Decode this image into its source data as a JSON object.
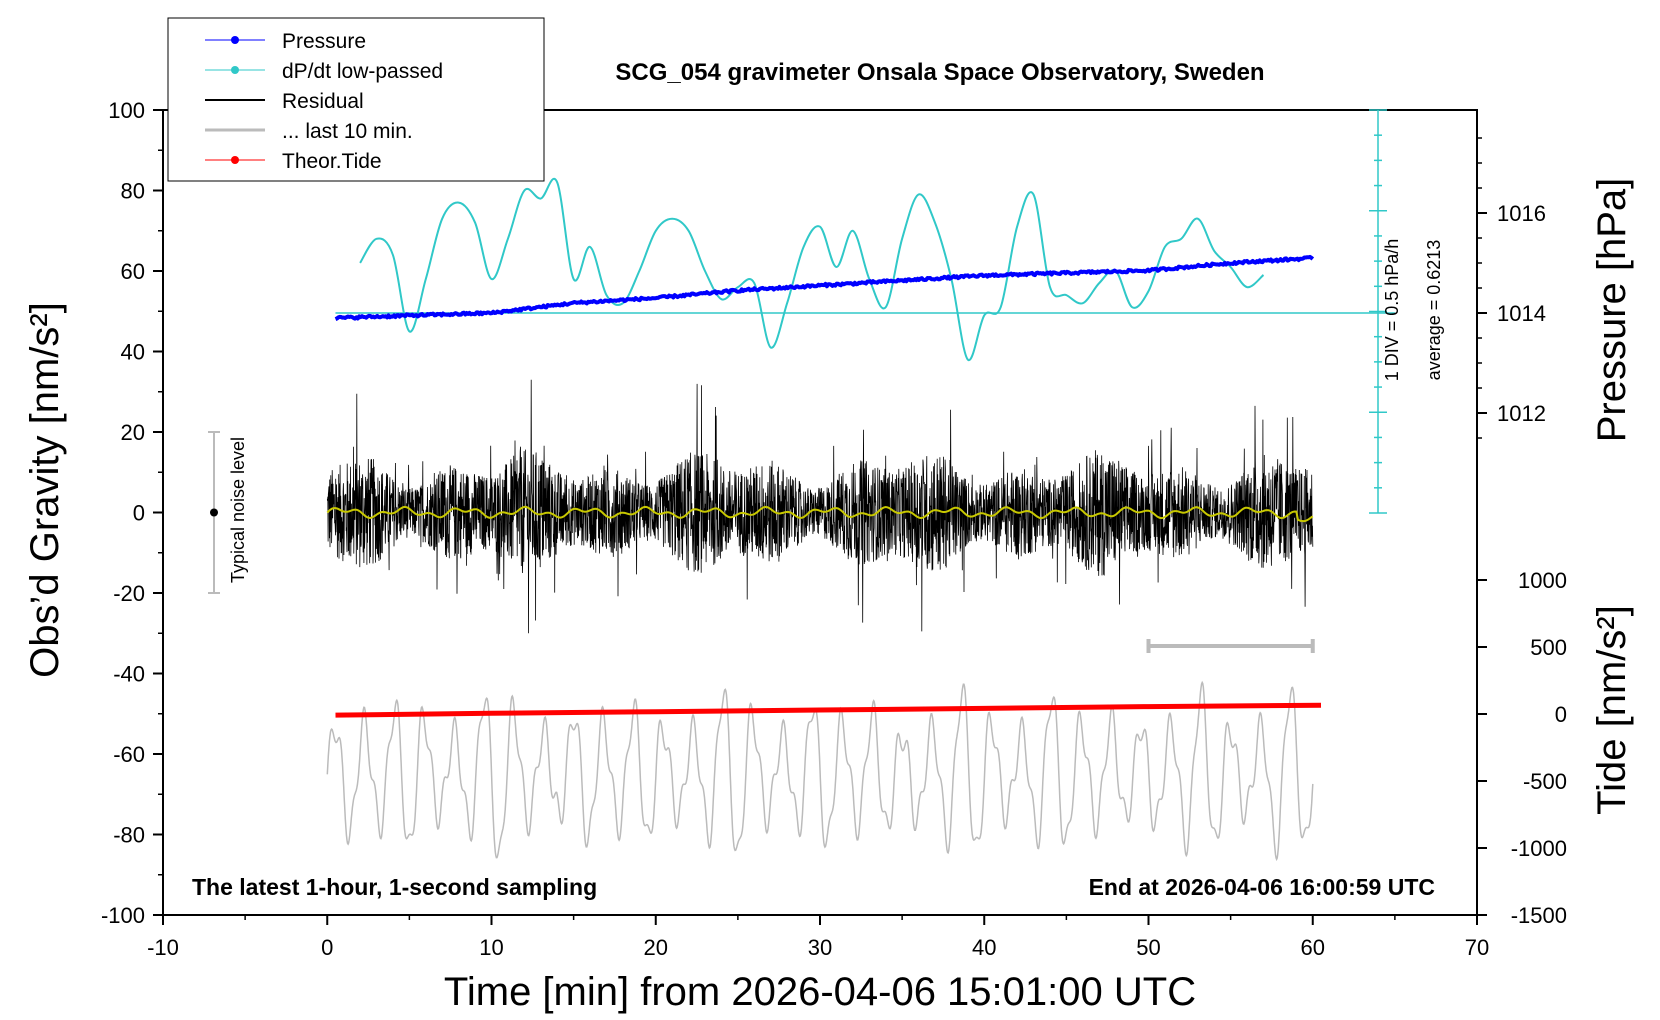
{
  "chart_data": {
    "type": "line",
    "title": "SCG_054 gravimeter Onsala Space Observatory, Sweden",
    "xlabel": "Time [min] from 2026-04-06 15:01:00 UTC",
    "ylabel": "Obs’d Gravity [nm/s²]",
    "ylabel_right_top": "Pressure [hPa]",
    "ylabel_right_bottom": "Tide [nm/s²]",
    "xlim": [
      -10,
      70
    ],
    "ylim": [
      -100,
      100
    ],
    "x_ticks": [
      -10,
      0,
      10,
      20,
      30,
      40,
      50,
      60,
      70
    ],
    "y_ticks": [
      100,
      80,
      60,
      40,
      20,
      0,
      -20,
      -40,
      -60,
      -80,
      -100
    ],
    "pressure_axis": {
      "ticks": [
        1016,
        1014,
        1012
      ],
      "unit": "hPa"
    },
    "tide_axis": {
      "ticks": [
        1000,
        500,
        0,
        -500,
        -1000,
        -1500
      ],
      "unit": "nm/s²"
    },
    "legend": {
      "position": "top-left",
      "entries": [
        "Pressure",
        "dP/dt low-passed",
        "Residual",
        "... last 10 min.",
        "Theor.Tide"
      ]
    },
    "annotations": {
      "noise": "Typical noise level",
      "div": "1 DIV = 0.5 hPa/h",
      "average": "average = 0.6213",
      "bottom_left": "The latest 1-hour, 1-second sampling",
      "bottom_right": "End at 2026-04-06 16:00:59 UTC"
    },
    "colors": {
      "pressure": "#0000ff",
      "dpdt": "#30c8c8",
      "residual": "#000000",
      "last10": "#bbbbbb",
      "tide": "#ff0000",
      "smooth": "#c8c800"
    },
    "series": [
      {
        "name": "Pressure",
        "x": [
          0.5,
          5,
          10,
          15,
          20,
          25,
          30,
          35,
          40,
          45,
          50,
          55,
          60
        ],
        "values": [
          1013.9,
          1013.95,
          1014.0,
          1014.2,
          1014.3,
          1014.45,
          1014.55,
          1014.65,
          1014.75,
          1014.8,
          1014.85,
          1015.0,
          1015.1
        ]
      },
      {
        "name": "dP/dt low-passed",
        "x": [
          2,
          3,
          4,
          5,
          6,
          7,
          8,
          9,
          10,
          11,
          12,
          13,
          14,
          15,
          16,
          17,
          18,
          19,
          20,
          21,
          22,
          23,
          24,
          25,
          26,
          27,
          28,
          29,
          30,
          31,
          32,
          33,
          34,
          35,
          36,
          37,
          38,
          39,
          40,
          41,
          42,
          43,
          44,
          45,
          46,
          47,
          48,
          49,
          50,
          51,
          52,
          53,
          54,
          55,
          56,
          57
        ],
        "values": [
          62,
          68,
          64,
          45,
          58,
          73,
          77,
          72,
          58,
          68,
          80,
          78,
          82,
          58,
          66,
          54,
          52,
          60,
          70,
          73,
          70,
          60,
          53,
          56,
          57,
          41,
          52,
          66,
          71,
          61,
          70,
          58,
          51,
          68,
          79,
          72,
          58,
          38,
          49,
          51,
          71,
          79,
          56,
          54,
          52,
          57,
          60,
          51,
          55,
          66,
          68,
          73,
          65,
          61,
          56,
          59
        ]
      },
      {
        "name": "Residual",
        "x": [
          0,
          60
        ],
        "values": [
          0,
          0
        ],
        "approx_range": [
          -30,
          33
        ]
      },
      {
        "name": "Theor.Tide",
        "x": [
          0.5,
          10,
          20,
          30,
          40,
          50,
          60.5
        ],
        "values": [
          -8,
          5,
          17,
          30,
          42,
          55,
          66
        ]
      }
    ]
  }
}
